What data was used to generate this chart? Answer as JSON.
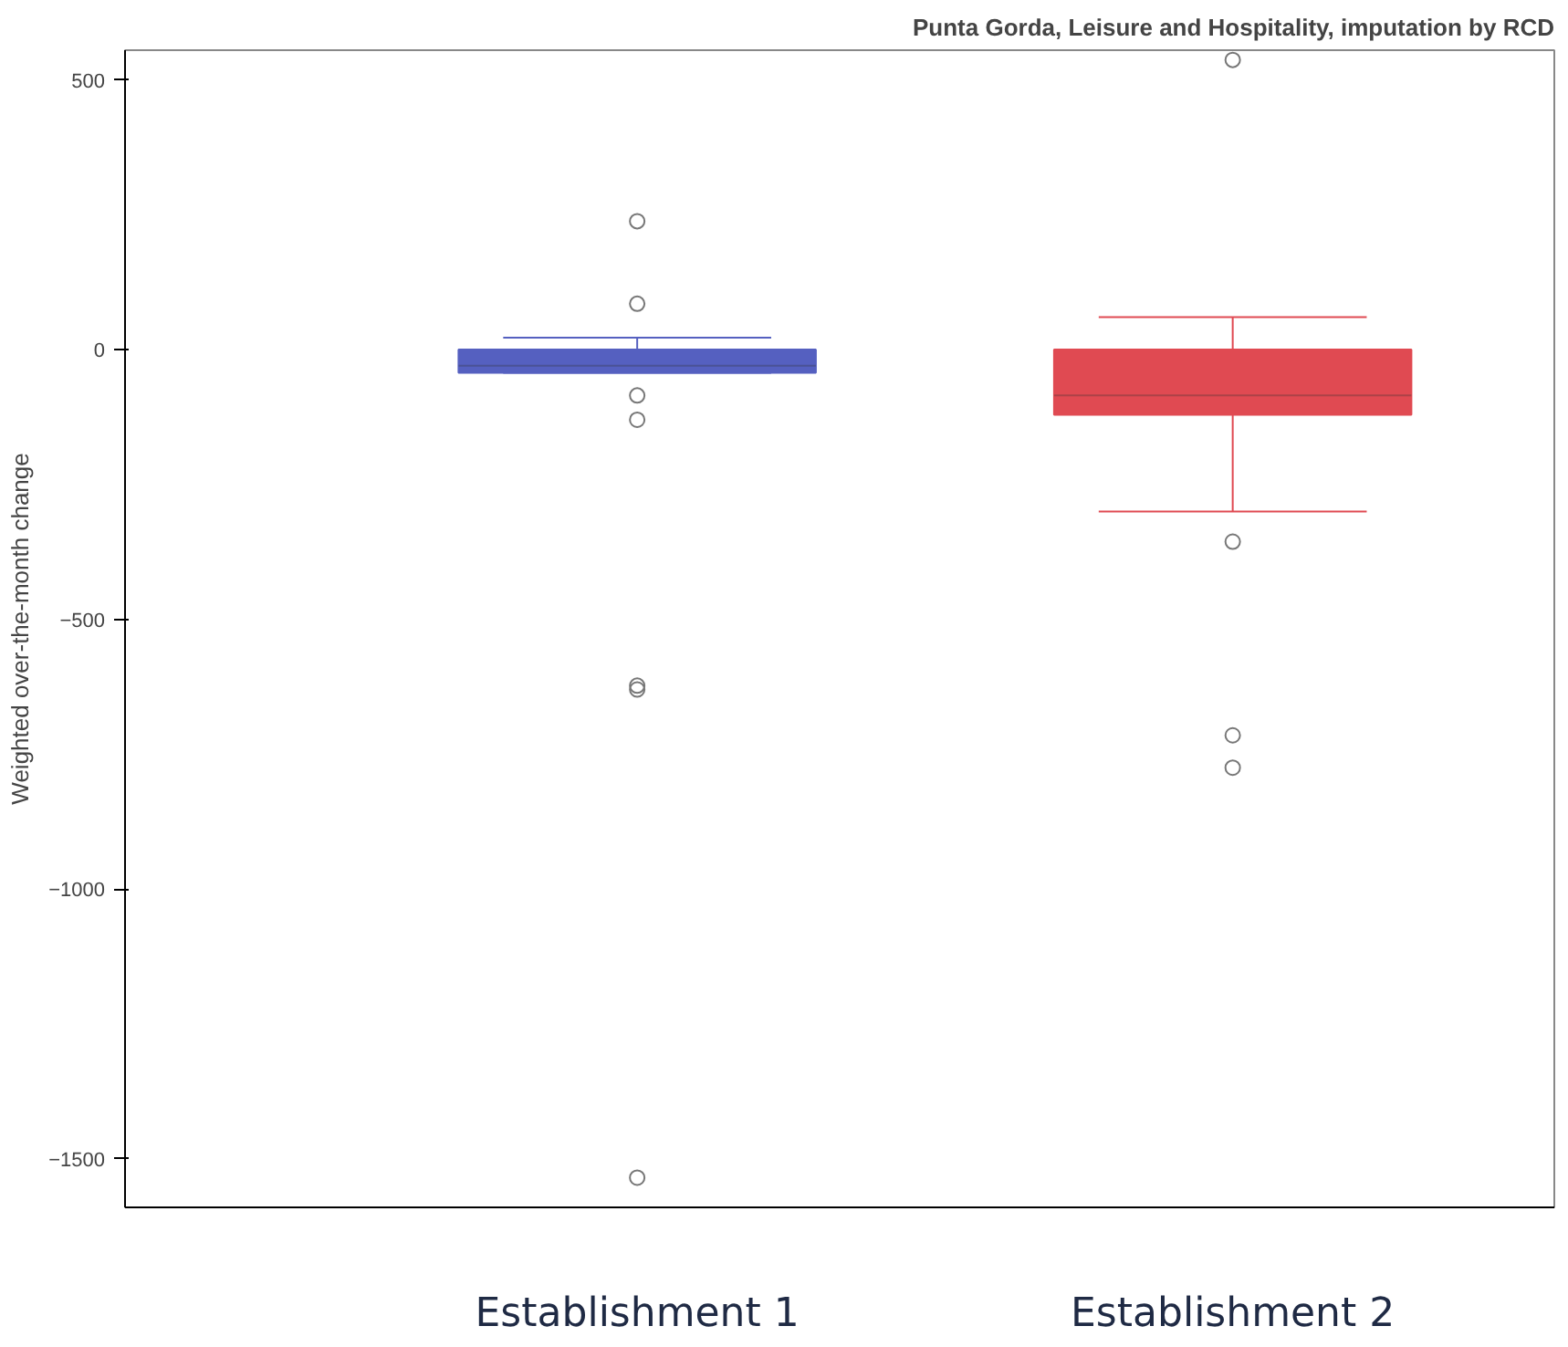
{
  "chart_data": {
    "type": "box",
    "title": "Punta Gorda, Leisure and Hospitality, imputation by RCD",
    "ylabel": "Weighted over-the-month change",
    "categories": [
      "Establishment 1",
      "Establishment 2"
    ],
    "series": [
      {
        "colors": [
          "#5560c0",
          "#e04a52"
        ],
        "boxes": [
          {
            "low": -43,
            "q1": -43,
            "median": -30,
            "q3": 0,
            "high": 22,
            "outliers": [
              238,
              85,
              -85,
              -130,
              -623,
              -630,
              -1535
            ]
          },
          {
            "low": -300,
            "q1": -121,
            "median": -85,
            "q3": 0,
            "high": 60,
            "outliers": [
              537,
              -356,
              -715,
              -775
            ]
          }
        ]
      }
    ],
    "ylim": [
      -1590,
      555
    ],
    "yticks": [
      -1500,
      -1000,
      -500,
      0,
      500
    ],
    "grid": false,
    "marker": "circle"
  }
}
